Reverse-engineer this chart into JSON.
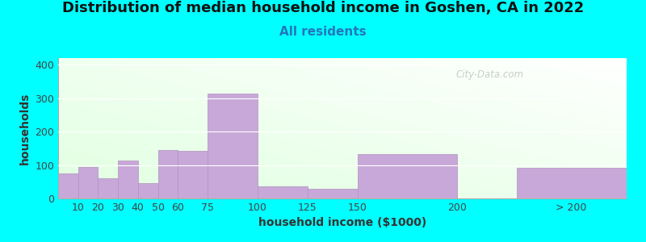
{
  "title": "Distribution of median household income in Goshen, CA in 2022",
  "subtitle": "All residents",
  "xlabel": "household income ($1000)",
  "ylabel": "households",
  "background_color": "#00FFFF",
  "bar_color": "#c8a8d8",
  "bar_edge_color": "#b090c0",
  "categories": [
    "10",
    "20",
    "30",
    "40",
    "50",
    "60",
    "75",
    "100",
    "125",
    "150",
    "200",
    "> 200"
  ],
  "values": [
    75,
    95,
    60,
    113,
    45,
    145,
    143,
    315,
    37,
    30,
    132,
    92
  ],
  "left_edges": [
    0,
    10,
    20,
    30,
    40,
    50,
    60,
    75,
    100,
    125,
    150,
    230
  ],
  "bar_widths": [
    10,
    10,
    10,
    10,
    10,
    10,
    15,
    25,
    25,
    25,
    50,
    55
  ],
  "tick_positions": [
    10,
    20,
    30,
    40,
    50,
    60,
    75,
    100,
    125,
    150,
    200
  ],
  "xlim": [
    0,
    285
  ],
  "ylim": [
    0,
    420
  ],
  "yticks": [
    0,
    100,
    200,
    300,
    400
  ],
  "watermark": "City-Data.com",
  "title_fontsize": 13,
  "subtitle_fontsize": 11,
  "axis_label_fontsize": 10,
  "tick_fontsize": 9
}
